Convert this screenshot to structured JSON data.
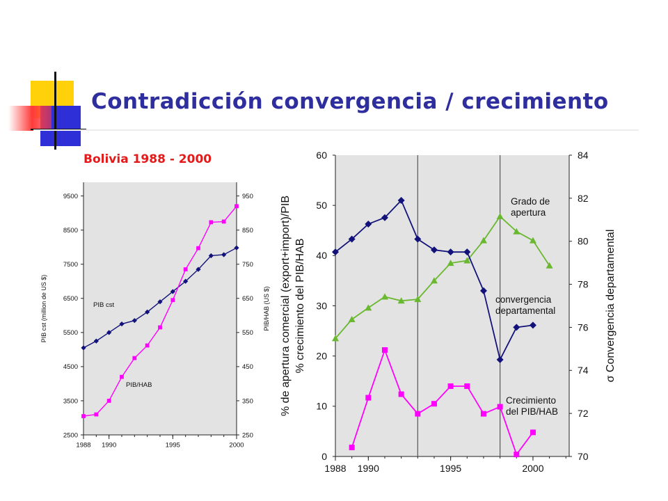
{
  "slide": {
    "title": "Contradicción convergencia / crecimiento",
    "subtitle": "Bolivia 1988 - 2000"
  },
  "colors": {
    "title": "#2e2e9e",
    "subtitle": "#e21a1a",
    "navy": "#12127a",
    "magenta": "#ff00ff",
    "crimson": "#e8157f",
    "green": "#6ab82f",
    "plot_bg": "#e3e3e3"
  },
  "chart_data": [
    {
      "type": "line",
      "title": "",
      "xlabel": "",
      "ylabel": "PIB cst (million de US $)",
      "ylabel_right": "PIB/HAB (US $)",
      "x_ticks": [
        "1988",
        "1990",
        "1995",
        "2000"
      ],
      "y_ticks": [
        "2500",
        "3500",
        "4500",
        "5500",
        "6500",
        "7500",
        "8500",
        "9500"
      ],
      "y2_ticks": [
        "250",
        "350",
        "450",
        "550",
        "650",
        "750",
        "850",
        "950"
      ],
      "xlim": [
        1988,
        2000
      ],
      "ylim": [
        2500,
        9900
      ],
      "y2lim": [
        250,
        990
      ],
      "grid": false,
      "series": [
        {
          "name": "PIB cst",
          "axis": "left",
          "color": "#12127a",
          "marker": "diamond",
          "x": [
            1988,
            1989,
            1990,
            1991,
            1992,
            1993,
            1994,
            1995,
            1996,
            1997,
            1998,
            1999,
            2000
          ],
          "y": [
            5050,
            5250,
            5500,
            5750,
            5850,
            6100,
            6400,
            6700,
            7000,
            7350,
            7750,
            7780,
            7980
          ]
        },
        {
          "name": "PIB/HAB",
          "axis": "right",
          "color": "#ff00ff",
          "marker": "square",
          "x": [
            1988,
            1989,
            1990,
            1991,
            1992,
            1993,
            1994,
            1995,
            1996,
            1997,
            1998,
            1999,
            2000
          ],
          "y": [
            305,
            310,
            350,
            420,
            475,
            512,
            565,
            645,
            735,
            797,
            873,
            875,
            920
          ]
        }
      ]
    },
    {
      "type": "line",
      "title": "",
      "xlabel": "",
      "ylabel": "% de apertura comercial (export+import)/PIB\n% crecimiento del PIB/HAB",
      "ylabel_right": "σ Convergencia departamental",
      "x_ticks": [
        "1988",
        "1990",
        "1995",
        "2000"
      ],
      "y_ticks": [
        "0",
        "10",
        "20",
        "30",
        "40",
        "50",
        "60"
      ],
      "y2_ticks": [
        "70",
        "72",
        "74",
        "76",
        "78",
        "80",
        "82",
        "84"
      ],
      "xlim": [
        1988,
        2002.2
      ],
      "ylim": [
        0,
        60
      ],
      "y2lim": [
        70,
        84
      ],
      "grid": false,
      "vertical_lines": [
        1993,
        1998
      ],
      "series": [
        {
          "name": "Grado de apertura",
          "axis": "left",
          "color": "#6ab82f",
          "marker": "triangle",
          "x": [
            1988,
            1989,
            1990,
            1991,
            1992,
            1993,
            1994,
            1995,
            1996,
            1997,
            1998,
            1999,
            2000,
            2001
          ],
          "y": [
            23.5,
            27.3,
            29.6,
            31.8,
            31.0,
            31.3,
            35.0,
            38.5,
            39.0,
            43.0,
            47.8,
            44.8,
            43.0,
            38.0
          ]
        },
        {
          "name": "convergencia departamental",
          "axis": "right",
          "color": "#12127a",
          "marker": "diamond",
          "x": [
            1988,
            1989,
            1990,
            1991,
            1992,
            1993,
            1994,
            1995,
            1996,
            1997,
            1998,
            1999,
            2000
          ],
          "y": [
            79.5,
            80.1,
            80.8,
            81.1,
            81.9,
            80.1,
            79.6,
            79.5,
            79.5,
            77.7,
            74.5,
            76.0,
            76.1
          ]
        },
        {
          "name": "Crecimiento del PIB/HAB",
          "axis": "left",
          "color": "#ff00ff",
          "marker": "square",
          "x": [
            1989,
            1990,
            1991,
            1992,
            1993,
            1994,
            1995,
            1996,
            1997,
            1998,
            1999,
            2000
          ],
          "y": [
            1.8,
            11.7,
            21.2,
            12.4,
            8.5,
            10.5,
            14.0,
            14.0,
            8.5,
            9.9,
            0.4,
            4.8
          ]
        }
      ],
      "annotations": [
        {
          "text": "Grado de\napertura"
        },
        {
          "text": "convergencia\ndepartamental"
        },
        {
          "text": "Crecimiento\ndel PIB/HAB"
        }
      ]
    }
  ]
}
